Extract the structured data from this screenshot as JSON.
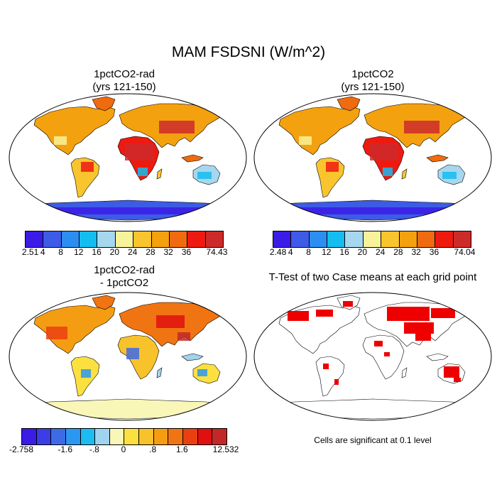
{
  "title": "MAM FSDSNI (W/m^2)",
  "panels": [
    {
      "id": "p1",
      "title_line1": "1pctCO2-rad",
      "title_line2": "(yrs 121-150)"
    },
    {
      "id": "p2",
      "title_line1": "1pctCO2",
      "title_line2": "(yrs 121-150)"
    },
    {
      "id": "p3",
      "title_line1": "1pctCO2-rad",
      "title_line2": "- 1pctCO2"
    },
    {
      "id": "p4",
      "title_line1": "T-Test of two Case means at each grid point",
      "title_line2": ""
    }
  ],
  "colorbars": [
    {
      "id": "cb1",
      "colors": [
        "#3a1ce6",
        "#3d5be6",
        "#2b8ef0",
        "#14bdf0",
        "#a7d7ef",
        "#f8f29a",
        "#f8c52e",
        "#f4a10f",
        "#f06a10",
        "#ee1a10",
        "#cd2a2a"
      ],
      "labels": [
        "2.51",
        "4",
        "8",
        "12",
        "16",
        "20",
        "24",
        "28",
        "32",
        "36",
        "74.43"
      ]
    },
    {
      "id": "cb2",
      "colors": [
        "#3a1ce6",
        "#3d5be6",
        "#2b8ef0",
        "#14bdf0",
        "#a7d7ef",
        "#f8f29a",
        "#f8c52e",
        "#f4a10f",
        "#f06a10",
        "#ee1a10",
        "#cd2a2a"
      ],
      "labels": [
        "2.48",
        "4",
        "8",
        "12",
        "16",
        "20",
        "24",
        "28",
        "32",
        "36",
        "74.04"
      ]
    },
    {
      "id": "cb3",
      "colors": [
        "#3a1ce6",
        "#3b3de6",
        "#3d6be8",
        "#2a98f0",
        "#1bbcf2",
        "#9fd3ee",
        "#f9f7b8",
        "#fce040",
        "#f8c22a",
        "#f59d12",
        "#f07412",
        "#ea4010",
        "#e01010",
        "#c22828"
      ],
      "labels": [
        "-2.758",
        "-1.6",
        "-.8",
        "0",
        ".8",
        "1.6",
        "12.532"
      ]
    }
  ],
  "significance_note": "Cells are significant at 0.1 level",
  "significance_color": "#ee0000"
}
